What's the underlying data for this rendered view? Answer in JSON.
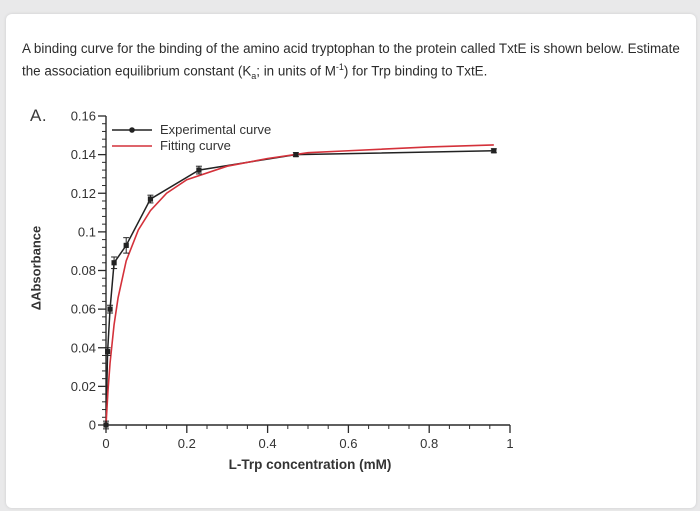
{
  "question": {
    "part1": "A binding curve for the binding of the amino acid tryptophan to the protein called TxtE is shown below. Estimate the association equilibrium constant (K",
    "sub": "a",
    "part2": "; in units of M",
    "sup": "-1",
    "part3": ") for Trp binding to TxtE."
  },
  "panel_label": "A.",
  "chart_data": {
    "type": "line",
    "xlabel": "L-Trp concentration (mM)",
    "ylabel": "ΔAbsorbance",
    "xlim": [
      0,
      1
    ],
    "ylim": [
      0,
      0.16
    ],
    "x_ticks": [
      0,
      0.2,
      0.4,
      0.6,
      0.8,
      1
    ],
    "x_tick_labels": [
      "0",
      "0.2",
      "0.4",
      "0.6",
      "0.8",
      "1"
    ],
    "y_ticks": [
      0,
      0.02,
      0.04,
      0.06,
      0.08,
      0.1,
      0.12,
      0.14,
      0.16
    ],
    "y_tick_labels": [
      "0",
      "0.02",
      "0.04",
      "0.06",
      "0.08",
      "0.1",
      "0.12",
      "0.14",
      "0.16"
    ],
    "legend": "top-left inside",
    "colors": {
      "experimental": "#222222",
      "fit": "#d4313a"
    },
    "series": [
      {
        "name": "Experimental curve",
        "style": "black line with square markers and error bars",
        "x": [
          0.0,
          0.004,
          0.01,
          0.02,
          0.05,
          0.11,
          0.23,
          0.47,
          0.96
        ],
        "y": [
          0.0,
          0.038,
          0.06,
          0.084,
          0.093,
          0.117,
          0.132,
          0.14,
          0.142
        ],
        "err": [
          0.002,
          0.002,
          0.002,
          0.003,
          0.004,
          0.002,
          0.002,
          0.001,
          0.001
        ]
      },
      {
        "name": "Fitting curve",
        "style": "red line",
        "x": [
          0.0,
          0.005,
          0.01,
          0.02,
          0.03,
          0.05,
          0.08,
          0.11,
          0.15,
          0.2,
          0.3,
          0.4,
          0.5,
          0.6,
          0.8,
          0.96
        ],
        "y": [
          0.0,
          0.018,
          0.032,
          0.052,
          0.066,
          0.085,
          0.101,
          0.111,
          0.12,
          0.127,
          0.134,
          0.138,
          0.141,
          0.142,
          0.144,
          0.145
        ]
      }
    ]
  }
}
